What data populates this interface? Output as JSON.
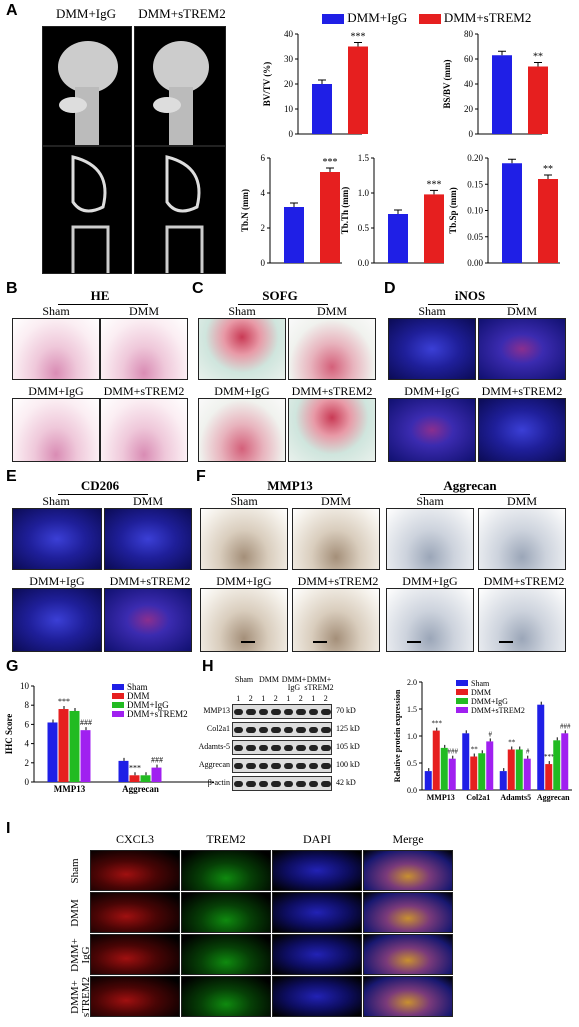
{
  "panels": {
    "A": "A",
    "B": "B",
    "C": "C",
    "D": "D",
    "E": "E",
    "F": "F",
    "G": "G",
    "H": "H",
    "I": "I"
  },
  "panelA": {
    "col1": "DMM+IgG",
    "col2": "DMM+sTREM2",
    "legend": [
      "DMM+IgG",
      "DMM+sTREM2"
    ],
    "colors": {
      "igg": "#1f1fe6",
      "strem2": "#e61f1f"
    }
  },
  "chart_data": [
    {
      "type": "bar",
      "ylabel": "BV/TV (%)",
      "ylim": [
        0,
        40
      ],
      "yticks": [
        "0",
        "10",
        "20",
        "30",
        "40"
      ],
      "series": [
        {
          "name": "DMM+IgG",
          "values": [
            20
          ]
        },
        {
          "name": "DMM+sTREM2",
          "values": [
            35
          ]
        }
      ],
      "annotation": "***"
    },
    {
      "type": "bar",
      "ylabel": "BS/BV (mm)",
      "ylim": [
        0,
        80
      ],
      "yticks": [
        "0",
        "20",
        "40",
        "60",
        "80"
      ],
      "series": [
        {
          "name": "DMM+IgG",
          "values": [
            63
          ]
        },
        {
          "name": "DMM+sTREM2",
          "values": [
            54
          ]
        }
      ],
      "annotation": "**"
    },
    {
      "type": "bar",
      "ylabel": "Tb.N (mm)",
      "ylim": [
        0,
        6
      ],
      "yticks": [
        "0",
        "2",
        "4",
        "6"
      ],
      "series": [
        {
          "name": "DMM+IgG",
          "values": [
            3.2
          ]
        },
        {
          "name": "DMM+sTREM2",
          "values": [
            5.2
          ]
        }
      ],
      "annotation": "***"
    },
    {
      "type": "bar",
      "ylabel": "Tb.Th (mm)",
      "ylim": [
        0,
        1.5
      ],
      "yticks": [
        "0.0",
        "0.5",
        "1.0",
        "1.5"
      ],
      "series": [
        {
          "name": "DMM+IgG",
          "values": [
            0.7
          ]
        },
        {
          "name": "DMM+sTREM2",
          "values": [
            0.98
          ]
        }
      ],
      "annotation": "***"
    },
    {
      "type": "bar",
      "ylabel": "Tb.Sp (mm)",
      "ylim": [
        0,
        0.2
      ],
      "yticks": [
        "0.00",
        "0.05",
        "0.10",
        "0.15",
        "0.20"
      ],
      "series": [
        {
          "name": "DMM+IgG",
          "values": [
            0.19
          ]
        },
        {
          "name": "DMM+sTREM2",
          "values": [
            0.16
          ]
        }
      ],
      "annotation": "**"
    },
    {
      "type": "bar",
      "ylabel": "IHC Score",
      "ylim": [
        0,
        10
      ],
      "yticks": [
        "0",
        "2",
        "4",
        "6",
        "8",
        "10"
      ],
      "categories": [
        "MMP13",
        "Aggrecan"
      ],
      "series": [
        {
          "name": "Sham",
          "values": [
            6.2,
            2.2
          ]
        },
        {
          "name": "DMM",
          "values": [
            7.6,
            0.7
          ]
        },
        {
          "name": "DMM+IgG",
          "values": [
            7.4,
            0.7
          ]
        },
        {
          "name": "DMM+sTREM2",
          "values": [
            5.4,
            1.5
          ]
        }
      ],
      "annotations": [
        [
          "",
          "***",
          "",
          "###"
        ],
        [
          "",
          "***",
          "",
          "###"
        ]
      ]
    },
    {
      "type": "bar",
      "ylabel": "Relative protein expression",
      "ylim": [
        0,
        2.0
      ],
      "yticks": [
        "0.0",
        "0.5",
        "1.0",
        "1.5",
        "2.0"
      ],
      "categories": [
        "MMP13",
        "Col2a1",
        "Adamts5",
        "Aggrecan"
      ],
      "series": [
        {
          "name": "Sham",
          "values": [
            0.35,
            1.05,
            0.35,
            1.58
          ]
        },
        {
          "name": "DMM",
          "values": [
            1.1,
            0.62,
            0.75,
            0.48
          ]
        },
        {
          "name": "DMM+IgG",
          "values": [
            0.78,
            0.68,
            0.75,
            0.92
          ]
        },
        {
          "name": "DMM+sTREM2",
          "values": [
            0.58,
            0.9,
            0.58,
            1.05
          ]
        }
      ],
      "annotations": [
        [
          "",
          "***",
          "",
          "###"
        ],
        [
          "",
          "**",
          "",
          "#"
        ],
        [
          "",
          "**",
          "",
          "#"
        ],
        [
          "",
          "***",
          "",
          "###"
        ]
      ]
    }
  ],
  "groupColors": {
    "Sham": "#1f1fe6",
    "DMM": "#e61f1f",
    "DMM+IgG": "#22bb22",
    "DMM+sTREM2": "#a020f0"
  },
  "panelB": {
    "title": "HE",
    "labels": [
      "Sham",
      "DMM",
      "DMM+IgG",
      "DMM+sTREM2"
    ]
  },
  "panelC": {
    "title": "SOFG",
    "labels": [
      "Sham",
      "DMM",
      "DMM+IgG",
      "DMM+sTREM2"
    ]
  },
  "panelD": {
    "title": "iNOS",
    "labels": [
      "Sham",
      "DMM",
      "DMM+IgG",
      "DMM+sTREM2"
    ]
  },
  "panelE": {
    "title": "CD206",
    "labels": [
      "Sham",
      "DMM",
      "DMM+IgG",
      "DMM+sTREM2"
    ]
  },
  "panelF": {
    "title1": "MMP13",
    "title2": "Aggrecan",
    "labels": [
      "Sham",
      "DMM",
      "DMM+IgG",
      "DMM+sTREM2",
      "Sham",
      "DMM",
      "DMM+IgG",
      "DMM+sTREM2"
    ]
  },
  "panelH": {
    "groups": [
      "Sham",
      "DMM",
      "DMM+\nIgG",
      "DMM+\nsTREM2"
    ],
    "lanes": [
      "1",
      "2",
      "1",
      "2",
      "1",
      "2",
      "1",
      "2"
    ],
    "proteins": [
      "MMP13",
      "Col2a1",
      "Adamts-5",
      "Aggrecan",
      "β-actin"
    ],
    "weights": [
      "70 kD",
      "125 kD",
      "105 kD",
      "100 kD",
      "42 kD"
    ]
  },
  "panelI": {
    "cols": [
      "CXCL3",
      "TREM2",
      "DAPI",
      "Merge"
    ],
    "rows": [
      "Sham",
      "DMM",
      "DMM+\nIgG",
      "DMM+\nsTREM2"
    ]
  }
}
